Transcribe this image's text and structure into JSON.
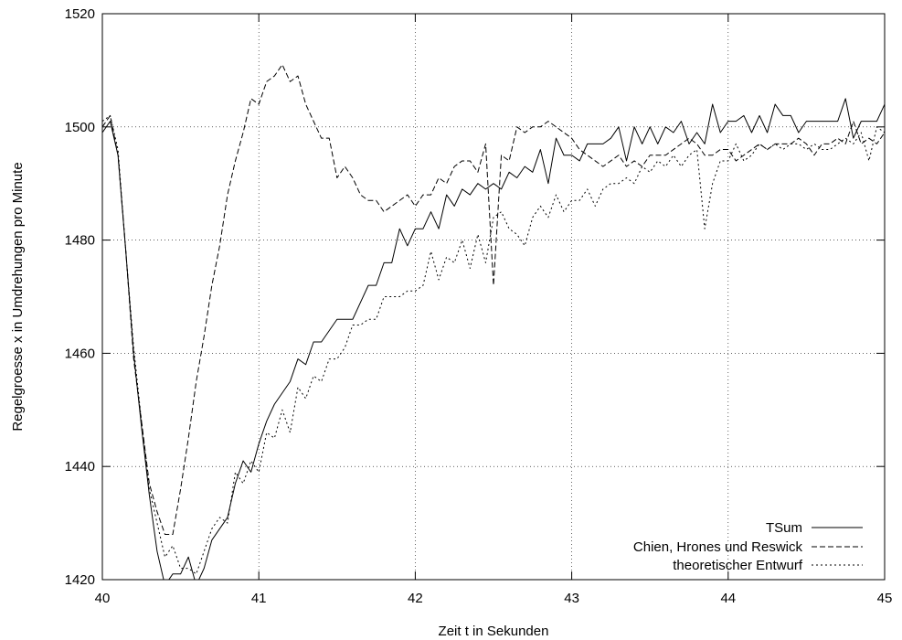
{
  "chart_data": {
    "type": "line",
    "title": "",
    "xlabel": "Zeit t in Sekunden",
    "ylabel": "Regelgroesse x in Umdrehungen pro Minute",
    "xlim": [
      40,
      45
    ],
    "ylim": [
      1420,
      1520
    ],
    "xticks": [
      40,
      41,
      42,
      43,
      44,
      45
    ],
    "yticks": [
      1420,
      1440,
      1460,
      1480,
      1500,
      1520
    ],
    "xtick_labels": [
      "40",
      "41",
      "42",
      "43",
      "44",
      "45"
    ],
    "ytick_labels": [
      "1420",
      "1440",
      "1460",
      "1480",
      "1500",
      "1520"
    ],
    "grid": true,
    "legend_position": "bottom-right",
    "colors": {
      "line": "#000000",
      "grid": "#000000",
      "background": "#ffffff"
    },
    "series": [
      {
        "name": "TSum",
        "style": "solid",
        "points": [
          [
            40.0,
            1499
          ],
          [
            40.05,
            1501
          ],
          [
            40.1,
            1495
          ],
          [
            40.15,
            1478
          ],
          [
            40.2,
            1460
          ],
          [
            40.25,
            1447
          ],
          [
            40.3,
            1435
          ],
          [
            40.35,
            1425
          ],
          [
            40.4,
            1419
          ],
          [
            40.45,
            1421
          ],
          [
            40.5,
            1421
          ],
          [
            40.55,
            1424
          ],
          [
            40.6,
            1419
          ],
          [
            40.65,
            1422
          ],
          [
            40.7,
            1427
          ],
          [
            40.75,
            1429
          ],
          [
            40.8,
            1431
          ],
          [
            40.85,
            1437
          ],
          [
            40.9,
            1441
          ],
          [
            40.95,
            1439
          ],
          [
            41.0,
            1444
          ],
          [
            41.05,
            1448
          ],
          [
            41.1,
            1451
          ],
          [
            41.15,
            1453
          ],
          [
            41.2,
            1455
          ],
          [
            41.25,
            1459
          ],
          [
            41.3,
            1458
          ],
          [
            41.35,
            1462
          ],
          [
            41.4,
            1462
          ],
          [
            41.45,
            1464
          ],
          [
            41.5,
            1466
          ],
          [
            41.55,
            1466
          ],
          [
            41.6,
            1466
          ],
          [
            41.65,
            1469
          ],
          [
            41.7,
            1472
          ],
          [
            41.75,
            1472
          ],
          [
            41.8,
            1476
          ],
          [
            41.85,
            1476
          ],
          [
            41.9,
            1482
          ],
          [
            41.95,
            1479
          ],
          [
            42.0,
            1482
          ],
          [
            42.05,
            1482
          ],
          [
            42.1,
            1485
          ],
          [
            42.15,
            1482
          ],
          [
            42.2,
            1488
          ],
          [
            42.25,
            1486
          ],
          [
            42.3,
            1489
          ],
          [
            42.35,
            1488
          ],
          [
            42.4,
            1490
          ],
          [
            42.45,
            1489
          ],
          [
            42.5,
            1490
          ],
          [
            42.55,
            1489
          ],
          [
            42.6,
            1492
          ],
          [
            42.65,
            1491
          ],
          [
            42.7,
            1493
          ],
          [
            42.75,
            1492
          ],
          [
            42.8,
            1496
          ],
          [
            42.85,
            1490
          ],
          [
            42.9,
            1498
          ],
          [
            42.95,
            1495
          ],
          [
            43.0,
            1495
          ],
          [
            43.05,
            1494
          ],
          [
            43.1,
            1497
          ],
          [
            43.15,
            1497
          ],
          [
            43.2,
            1497
          ],
          [
            43.25,
            1498
          ],
          [
            43.3,
            1500
          ],
          [
            43.35,
            1494
          ],
          [
            43.4,
            1500
          ],
          [
            43.45,
            1497
          ],
          [
            43.5,
            1500
          ],
          [
            43.55,
            1497
          ],
          [
            43.6,
            1500
          ],
          [
            43.65,
            1499
          ],
          [
            43.7,
            1501
          ],
          [
            43.75,
            1497
          ],
          [
            43.8,
            1499
          ],
          [
            43.85,
            1497
          ],
          [
            43.9,
            1504
          ],
          [
            43.95,
            1499
          ],
          [
            44.0,
            1501
          ],
          [
            44.05,
            1501
          ],
          [
            44.1,
            1502
          ],
          [
            44.15,
            1499
          ],
          [
            44.2,
            1502
          ],
          [
            44.25,
            1499
          ],
          [
            44.3,
            1504
          ],
          [
            44.35,
            1502
          ],
          [
            44.4,
            1502
          ],
          [
            44.45,
            1499
          ],
          [
            44.5,
            1501
          ],
          [
            44.55,
            1501
          ],
          [
            44.6,
            1501
          ],
          [
            44.65,
            1501
          ],
          [
            44.7,
            1501
          ],
          [
            44.75,
            1505
          ],
          [
            44.8,
            1498
          ],
          [
            44.85,
            1501
          ],
          [
            44.9,
            1501
          ],
          [
            44.95,
            1501
          ],
          [
            45.0,
            1504
          ]
        ]
      },
      {
        "name": "Chien, Hrones und Reswick",
        "style": "dashed",
        "points": [
          [
            40.0,
            1500
          ],
          [
            40.05,
            1502
          ],
          [
            40.1,
            1495
          ],
          [
            40.15,
            1478
          ],
          [
            40.2,
            1459
          ],
          [
            40.25,
            1448
          ],
          [
            40.3,
            1437
          ],
          [
            40.35,
            1432
          ],
          [
            40.4,
            1428
          ],
          [
            40.45,
            1428
          ],
          [
            40.5,
            1436
          ],
          [
            40.55,
            1445
          ],
          [
            40.6,
            1455
          ],
          [
            40.65,
            1463
          ],
          [
            40.7,
            1472
          ],
          [
            40.75,
            1479
          ],
          [
            40.8,
            1488
          ],
          [
            40.85,
            1494
          ],
          [
            40.9,
            1499
          ],
          [
            40.95,
            1505
          ],
          [
            41.0,
            1504
          ],
          [
            41.05,
            1508
          ],
          [
            41.1,
            1509
          ],
          [
            41.15,
            1511
          ],
          [
            41.2,
            1508
          ],
          [
            41.25,
            1509
          ],
          [
            41.3,
            1504
          ],
          [
            41.35,
            1501
          ],
          [
            41.4,
            1498
          ],
          [
            41.45,
            1498
          ],
          [
            41.5,
            1491
          ],
          [
            41.55,
            1493
          ],
          [
            41.6,
            1491
          ],
          [
            41.65,
            1488
          ],
          [
            41.7,
            1487
          ],
          [
            41.75,
            1487
          ],
          [
            41.8,
            1485
          ],
          [
            41.85,
            1486
          ],
          [
            41.9,
            1487
          ],
          [
            41.95,
            1488
          ],
          [
            42.0,
            1486
          ],
          [
            42.05,
            1488
          ],
          [
            42.1,
            1488
          ],
          [
            42.15,
            1491
          ],
          [
            42.2,
            1490
          ],
          [
            42.25,
            1493
          ],
          [
            42.3,
            1494
          ],
          [
            42.35,
            1494
          ],
          [
            42.4,
            1492
          ],
          [
            42.45,
            1497
          ],
          [
            42.5,
            1472
          ],
          [
            42.55,
            1495
          ],
          [
            42.6,
            1494
          ],
          [
            42.65,
            1500
          ],
          [
            42.7,
            1499
          ],
          [
            42.75,
            1500
          ],
          [
            42.8,
            1500
          ],
          [
            42.85,
            1501
          ],
          [
            42.9,
            1500
          ],
          [
            42.95,
            1499
          ],
          [
            43.0,
            1498
          ],
          [
            43.05,
            1496
          ],
          [
            43.1,
            1495
          ],
          [
            43.15,
            1494
          ],
          [
            43.2,
            1493
          ],
          [
            43.25,
            1494
          ],
          [
            43.3,
            1495
          ],
          [
            43.35,
            1493
          ],
          [
            43.4,
            1494
          ],
          [
            43.45,
            1493
          ],
          [
            43.5,
            1495
          ],
          [
            43.55,
            1495
          ],
          [
            43.6,
            1495
          ],
          [
            43.65,
            1496
          ],
          [
            43.7,
            1497
          ],
          [
            43.75,
            1498
          ],
          [
            43.8,
            1497
          ],
          [
            43.85,
            1495
          ],
          [
            43.9,
            1495
          ],
          [
            43.95,
            1496
          ],
          [
            44.0,
            1496
          ],
          [
            44.05,
            1494
          ],
          [
            44.1,
            1495
          ],
          [
            44.15,
            1496
          ],
          [
            44.2,
            1497
          ],
          [
            44.25,
            1496
          ],
          [
            44.3,
            1497
          ],
          [
            44.35,
            1497
          ],
          [
            44.4,
            1497
          ],
          [
            44.45,
            1498
          ],
          [
            44.5,
            1497
          ],
          [
            44.55,
            1495
          ],
          [
            44.6,
            1497
          ],
          [
            44.65,
            1497
          ],
          [
            44.7,
            1498
          ],
          [
            44.75,
            1497
          ],
          [
            44.8,
            1501
          ],
          [
            44.85,
            1497
          ],
          [
            44.9,
            1498
          ],
          [
            44.95,
            1497
          ],
          [
            45.0,
            1499
          ]
        ]
      },
      {
        "name": "theoretischer Entwurf",
        "style": "dotted",
        "points": [
          [
            40.0,
            1501
          ],
          [
            40.05,
            1502
          ],
          [
            40.1,
            1496
          ],
          [
            40.15,
            1478
          ],
          [
            40.2,
            1461
          ],
          [
            40.25,
            1448
          ],
          [
            40.3,
            1436
          ],
          [
            40.35,
            1430
          ],
          [
            40.4,
            1424
          ],
          [
            40.45,
            1426
          ],
          [
            40.5,
            1422
          ],
          [
            40.55,
            1422
          ],
          [
            40.6,
            1421
          ],
          [
            40.65,
            1425
          ],
          [
            40.7,
            1429
          ],
          [
            40.75,
            1431
          ],
          [
            40.8,
            1430
          ],
          [
            40.85,
            1439
          ],
          [
            40.9,
            1437
          ],
          [
            40.95,
            1441
          ],
          [
            41.0,
            1439
          ],
          [
            41.05,
            1446
          ],
          [
            41.1,
            1445
          ],
          [
            41.15,
            1450
          ],
          [
            41.2,
            1446
          ],
          [
            41.25,
            1454
          ],
          [
            41.3,
            1452
          ],
          [
            41.35,
            1456
          ],
          [
            41.4,
            1455
          ],
          [
            41.45,
            1459
          ],
          [
            41.5,
            1459
          ],
          [
            41.55,
            1461
          ],
          [
            41.6,
            1465
          ],
          [
            41.65,
            1465
          ],
          [
            41.7,
            1466
          ],
          [
            41.75,
            1466
          ],
          [
            41.8,
            1470
          ],
          [
            41.85,
            1470
          ],
          [
            41.9,
            1470
          ],
          [
            41.95,
            1471
          ],
          [
            42.0,
            1471
          ],
          [
            42.05,
            1472
          ],
          [
            42.1,
            1478
          ],
          [
            42.15,
            1473
          ],
          [
            42.2,
            1477
          ],
          [
            42.25,
            1476
          ],
          [
            42.3,
            1480
          ],
          [
            42.35,
            1475
          ],
          [
            42.4,
            1481
          ],
          [
            42.45,
            1476
          ],
          [
            42.5,
            1484
          ],
          [
            42.55,
            1485
          ],
          [
            42.6,
            1482
          ],
          [
            42.65,
            1481
          ],
          [
            42.7,
            1479
          ],
          [
            42.75,
            1484
          ],
          [
            42.8,
            1486
          ],
          [
            42.85,
            1484
          ],
          [
            42.9,
            1488
          ],
          [
            42.95,
            1485
          ],
          [
            43.0,
            1487
          ],
          [
            43.05,
            1487
          ],
          [
            43.1,
            1489
          ],
          [
            43.15,
            1486
          ],
          [
            43.2,
            1489
          ],
          [
            43.25,
            1490
          ],
          [
            43.3,
            1490
          ],
          [
            43.35,
            1491
          ],
          [
            43.4,
            1490
          ],
          [
            43.45,
            1493
          ],
          [
            43.5,
            1492
          ],
          [
            43.55,
            1494
          ],
          [
            43.6,
            1493
          ],
          [
            43.65,
            1495
          ],
          [
            43.7,
            1493
          ],
          [
            43.75,
            1495
          ],
          [
            43.8,
            1496
          ],
          [
            43.85,
            1482
          ],
          [
            43.9,
            1490
          ],
          [
            43.95,
            1494
          ],
          [
            44.0,
            1494
          ],
          [
            44.05,
            1497
          ],
          [
            44.1,
            1494
          ],
          [
            44.15,
            1495
          ],
          [
            44.2,
            1497
          ],
          [
            44.25,
            1496
          ],
          [
            44.3,
            1497
          ],
          [
            44.35,
            1496
          ],
          [
            44.4,
            1497
          ],
          [
            44.45,
            1497
          ],
          [
            44.5,
            1496
          ],
          [
            44.55,
            1497
          ],
          [
            44.6,
            1496
          ],
          [
            44.65,
            1496
          ],
          [
            44.7,
            1497
          ],
          [
            44.75,
            1498
          ],
          [
            44.8,
            1497
          ],
          [
            44.85,
            1499
          ],
          [
            44.9,
            1494
          ],
          [
            44.95,
            1500
          ],
          [
            45.0,
            1499
          ]
        ]
      }
    ]
  }
}
